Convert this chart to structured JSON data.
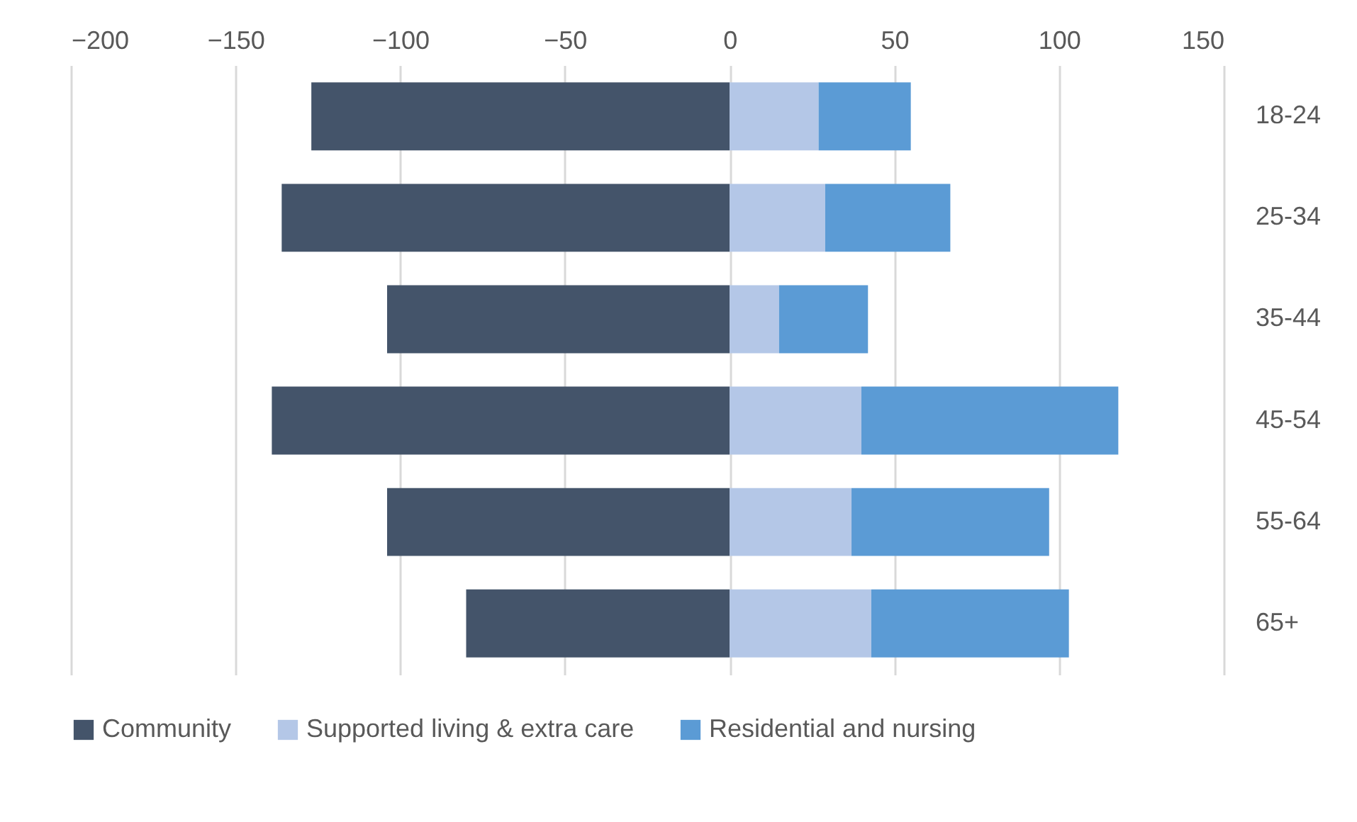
{
  "chart_data": {
    "type": "bar",
    "orientation": "horizontal",
    "stacked": true,
    "categories": [
      "18-24",
      "25-34",
      "35-44",
      "45-54",
      "55-64",
      "65+"
    ],
    "series": [
      {
        "name": "Community",
        "color": "#44546a",
        "values": [
          -127,
          -136,
          -104,
          -139,
          -104,
          -80
        ]
      },
      {
        "name": "Supported living & extra care",
        "color": "#b4c7e7",
        "values": [
          27,
          29,
          15,
          40,
          37,
          43
        ]
      },
      {
        "name": "Residential and nursing",
        "color": "#5b9bd5",
        "values": [
          28,
          38,
          27,
          78,
          60,
          60
        ]
      }
    ],
    "xlim": [
      -200,
      150
    ],
    "xticks": [
      -200,
      -150,
      -100,
      -50,
      0,
      50,
      100,
      150
    ],
    "grid": "x",
    "legend": "bottom"
  }
}
